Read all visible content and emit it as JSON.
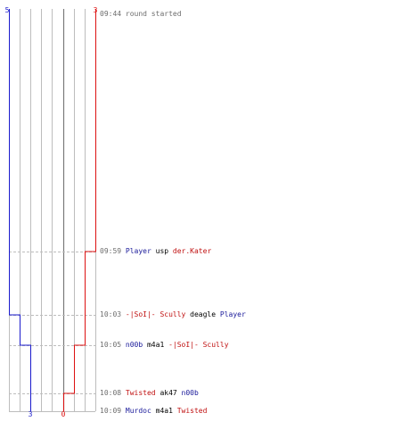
{
  "colors": {
    "team_blue": "#1a1acc",
    "team_red": "#dd1111",
    "grid": "#bdbdbd",
    "center_line": "#7a7a7a",
    "event_time": "#6d6d6d",
    "player_blue": "#1a1a9a",
    "player_red": "#c01010"
  },
  "score": {
    "blue_start": "5",
    "red_start": "3",
    "blue_end": "3",
    "red_end": "0"
  },
  "timeline": {
    "blue_steps": [
      5,
      5,
      4,
      3,
      3
    ],
    "red_steps": [
      3,
      2,
      2,
      1,
      0
    ]
  },
  "events": [
    {
      "id": "start",
      "time": "09:44",
      "parts": [
        {
          "text": "round started",
          "style": "plain"
        }
      ]
    },
    {
      "id": "kill-1",
      "time": "09:59",
      "parts": [
        {
          "text": "Player",
          "style": "blue"
        },
        {
          "text": " usp ",
          "style": "black"
        },
        {
          "text": "der.Kater",
          "style": "red"
        }
      ]
    },
    {
      "id": "kill-2",
      "time": "10:03",
      "parts": [
        {
          "text": "-|SoI|- Scully",
          "style": "red"
        },
        {
          "text": " deagle ",
          "style": "black"
        },
        {
          "text": "Player",
          "style": "blue"
        }
      ]
    },
    {
      "id": "kill-3",
      "time": "10:05",
      "parts": [
        {
          "text": "n00b",
          "style": "blue"
        },
        {
          "text": " m4a1 ",
          "style": "black"
        },
        {
          "text": "-|SoI|- Scully",
          "style": "red"
        }
      ]
    },
    {
      "id": "kill-4",
      "time": "10:08",
      "parts": [
        {
          "text": "Twisted",
          "style": "red"
        },
        {
          "text": " ak47 ",
          "style": "black"
        },
        {
          "text": "n00b",
          "style": "blue"
        }
      ]
    },
    {
      "id": "kill-5",
      "time": "10:09",
      "parts": [
        {
          "text": "Murdoc",
          "style": "blue"
        },
        {
          "text": " m4a1 ",
          "style": "black"
        },
        {
          "text": "Twisted",
          "style": "red"
        }
      ]
    }
  ]
}
